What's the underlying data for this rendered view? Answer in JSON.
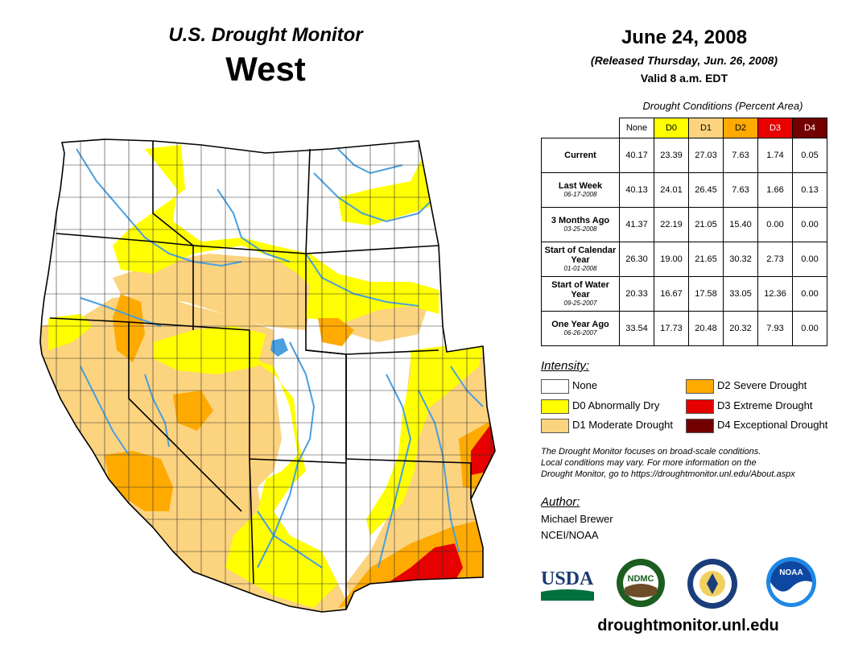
{
  "header": {
    "title": "U.S. Drought Monitor",
    "region": "West",
    "date": "June 24, 2008",
    "released": "(Released Thursday, Jun. 26, 2008)",
    "valid": "Valid 8 a.m. EDT"
  },
  "table": {
    "caption": "Drought Conditions (Percent Area)",
    "columns": [
      "None",
      "D0",
      "D1",
      "D2",
      "D3",
      "D4"
    ],
    "column_colors": [
      "#ffffff",
      "#ffff00",
      "#fcd37f",
      "#ffaa00",
      "#e60000",
      "#730000"
    ],
    "column_text_colors": [
      "#000000",
      "#000000",
      "#000000",
      "#000000",
      "#ffffff",
      "#ffffff"
    ],
    "rows": [
      {
        "label": "Current",
        "sublabel": "",
        "values": [
          "40.17",
          "23.39",
          "27.03",
          "7.63",
          "1.74",
          "0.05"
        ]
      },
      {
        "label": "Last Week",
        "sublabel": "06-17-2008",
        "values": [
          "40.13",
          "24.01",
          "26.45",
          "7.63",
          "1.66",
          "0.13"
        ]
      },
      {
        "label": "3 Months Ago",
        "sublabel": "03-25-2008",
        "values": [
          "41.37",
          "22.19",
          "21.05",
          "15.40",
          "0.00",
          "0.00"
        ]
      },
      {
        "label": "Start of Calendar Year",
        "sublabel": "01-01-2008",
        "values": [
          "26.30",
          "19.00",
          "21.65",
          "30.32",
          "2.73",
          "0.00"
        ]
      },
      {
        "label": "Start of Water Year",
        "sublabel": "09-25-2007",
        "values": [
          "20.33",
          "16.67",
          "17.58",
          "33.05",
          "12.36",
          "0.00"
        ]
      },
      {
        "label": "One Year Ago",
        "sublabel": "06-26-2007",
        "values": [
          "33.54",
          "17.73",
          "20.48",
          "20.32",
          "7.93",
          "0.00"
        ]
      }
    ]
  },
  "legend": {
    "title": "Intensity:",
    "items": [
      {
        "label": "None",
        "color": "#ffffff"
      },
      {
        "label": "D0 Abnormally Dry",
        "color": "#ffff00"
      },
      {
        "label": "D1 Moderate Drought",
        "color": "#fcd37f"
      },
      {
        "label": "D2 Severe Drought",
        "color": "#ffaa00"
      },
      {
        "label": "D3 Extreme Drought",
        "color": "#e60000"
      },
      {
        "label": "D4 Exceptional Drought",
        "color": "#730000"
      }
    ]
  },
  "note": {
    "line1": "The Drought Monitor focuses on broad-scale conditions.",
    "line2": "Local conditions may vary. For more information on the",
    "line3": "Drought Monitor, go to https://droughtmonitor.unl.edu/About.aspx"
  },
  "author": {
    "title": "Author:",
    "name": "Michael Brewer",
    "org": "NCEI/NOAA"
  },
  "logos": {
    "usda": "USDA",
    "ndmc": "NDMC",
    "noaa": "NOAA"
  },
  "website": "droughtmonitor.unl.edu",
  "colors": {
    "river": "#4a9fe0",
    "border": "#000000",
    "county": "#333333"
  }
}
